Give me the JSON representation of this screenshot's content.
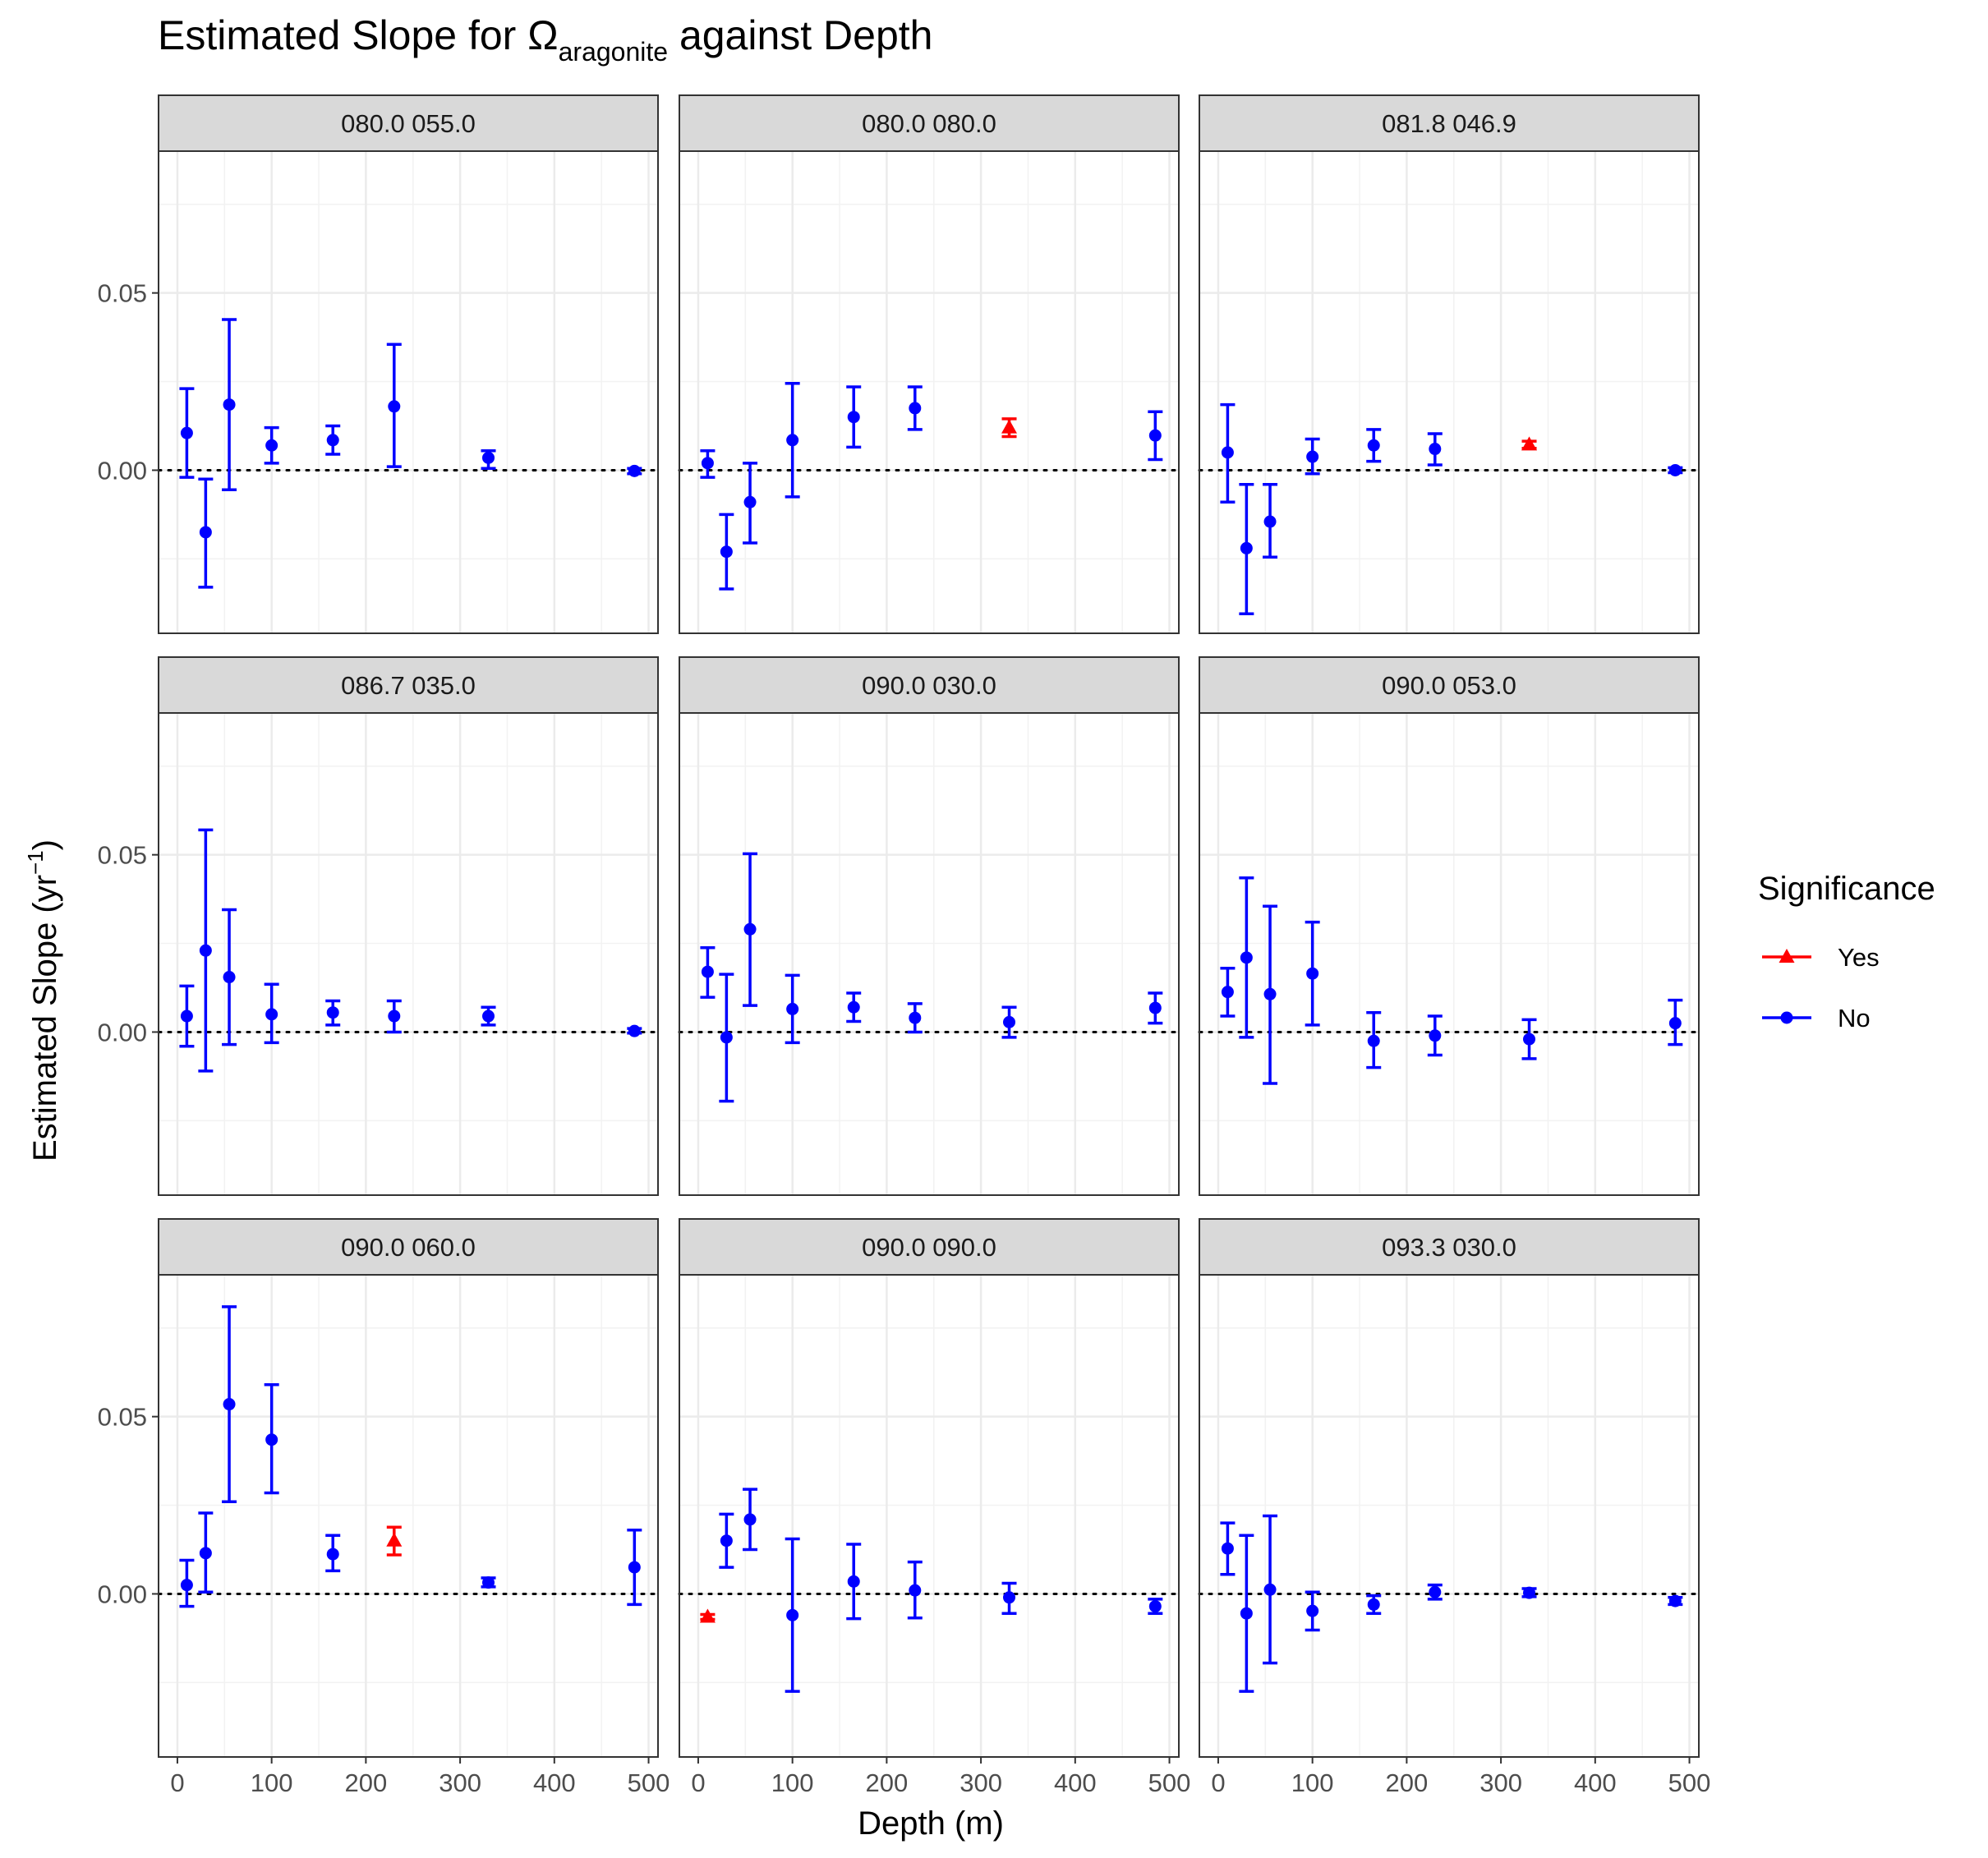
{
  "title": {
    "text": "Estimated Slope for Ω",
    "sub": "aragonite",
    "suffix": " against Depth"
  },
  "chart_data": {
    "type": "scatter",
    "subtype": "faceted points with error bars",
    "xlabel": "Depth (m)",
    "ylabel": {
      "text": "Estimated Slope (yr",
      "sup": "−1",
      "suffix": ")"
    },
    "xlim": [
      -20,
      510
    ],
    "ylim": [
      -0.046,
      0.09
    ],
    "x_ticks": [
      0,
      100,
      200,
      300,
      400,
      500
    ],
    "x_tick_labels": [
      "0",
      "100",
      "200",
      "300",
      "400",
      "500"
    ],
    "y_ticks": [
      0.0,
      0.05
    ],
    "y_tick_labels": [
      "0.00",
      "0.05"
    ],
    "grid": true,
    "reference_line": {
      "y": 0,
      "style": "dotted"
    },
    "legend": {
      "title": "Significance",
      "position": "right",
      "entries": [
        {
          "label": "Yes",
          "color": "#ff0000",
          "shape": "triangle"
        },
        {
          "label": "No",
          "color": "#0000ff",
          "shape": "circle"
        }
      ]
    },
    "facets": [
      {
        "label": "080.0 055.0",
        "points": [
          {
            "x": 10,
            "y": 0.0105,
            "lo": -0.002,
            "hi": 0.023,
            "sig": "No"
          },
          {
            "x": 30,
            "y": -0.0175,
            "lo": -0.033,
            "hi": -0.0025,
            "sig": "No"
          },
          {
            "x": 55,
            "y": 0.0185,
            "lo": -0.0055,
            "hi": 0.0425,
            "sig": "No"
          },
          {
            "x": 100,
            "y": 0.007,
            "lo": 0.002,
            "hi": 0.012,
            "sig": "No"
          },
          {
            "x": 165,
            "y": 0.0085,
            "lo": 0.0045,
            "hi": 0.0125,
            "sig": "No"
          },
          {
            "x": 230,
            "y": 0.018,
            "lo": 0.001,
            "hi": 0.0355,
            "sig": "No"
          },
          {
            "x": 330,
            "y": 0.0035,
            "lo": 0.0005,
            "hi": 0.0055,
            "sig": "No"
          },
          {
            "x": 485,
            "y": -0.0002,
            "lo": -0.001,
            "hi": 0.0005,
            "sig": "No"
          }
        ]
      },
      {
        "label": "080.0 080.0",
        "points": [
          {
            "x": 10,
            "y": 0.002,
            "lo": -0.002,
            "hi": 0.0055,
            "sig": "No"
          },
          {
            "x": 30,
            "y": -0.023,
            "lo": -0.0335,
            "hi": -0.0125,
            "sig": "No"
          },
          {
            "x": 55,
            "y": -0.009,
            "lo": -0.0205,
            "hi": 0.002,
            "sig": "No"
          },
          {
            "x": 100,
            "y": 0.0085,
            "lo": -0.0075,
            "hi": 0.0245,
            "sig": "No"
          },
          {
            "x": 165,
            "y": 0.015,
            "lo": 0.0065,
            "hi": 0.0235,
            "sig": "No"
          },
          {
            "x": 230,
            "y": 0.0175,
            "lo": 0.0115,
            "hi": 0.0235,
            "sig": "No"
          },
          {
            "x": 330,
            "y": 0.012,
            "lo": 0.0095,
            "hi": 0.0145,
            "sig": "Yes"
          },
          {
            "x": 485,
            "y": 0.0098,
            "lo": 0.003,
            "hi": 0.0165,
            "sig": "No"
          }
        ]
      },
      {
        "label": "081.8 046.9",
        "points": [
          {
            "x": 10,
            "y": 0.005,
            "lo": -0.009,
            "hi": 0.0185,
            "sig": "No"
          },
          {
            "x": 30,
            "y": -0.022,
            "lo": -0.0405,
            "hi": -0.004,
            "sig": "No"
          },
          {
            "x": 55,
            "y": -0.0145,
            "lo": -0.0245,
            "hi": -0.004,
            "sig": "No"
          },
          {
            "x": 100,
            "y": 0.0038,
            "lo": -0.001,
            "hi": 0.0088,
            "sig": "No"
          },
          {
            "x": 165,
            "y": 0.007,
            "lo": 0.0025,
            "hi": 0.0115,
            "sig": "No"
          },
          {
            "x": 230,
            "y": 0.006,
            "lo": 0.0015,
            "hi": 0.0103,
            "sig": "No"
          },
          {
            "x": 330,
            "y": 0.0072,
            "lo": 0.0062,
            "hi": 0.0082,
            "sig": "Yes"
          },
          {
            "x": 485,
            "y": 0.0,
            "lo": -0.0007,
            "hi": 0.0007,
            "sig": "No"
          }
        ]
      },
      {
        "label": "086.7 035.0",
        "points": [
          {
            "x": 10,
            "y": 0.0045,
            "lo": -0.004,
            "hi": 0.013,
            "sig": "No"
          },
          {
            "x": 30,
            "y": 0.023,
            "lo": -0.011,
            "hi": 0.057,
            "sig": "No"
          },
          {
            "x": 55,
            "y": 0.0155,
            "lo": -0.0035,
            "hi": 0.0345,
            "sig": "No"
          },
          {
            "x": 100,
            "y": 0.005,
            "lo": -0.003,
            "hi": 0.0135,
            "sig": "No"
          },
          {
            "x": 165,
            "y": 0.0055,
            "lo": 0.002,
            "hi": 0.0088,
            "sig": "No"
          },
          {
            "x": 230,
            "y": 0.0045,
            "lo": 0.0,
            "hi": 0.0088,
            "sig": "No"
          },
          {
            "x": 330,
            "y": 0.0045,
            "lo": 0.002,
            "hi": 0.007,
            "sig": "No"
          },
          {
            "x": 485,
            "y": 0.0003,
            "lo": -0.0003,
            "hi": 0.001,
            "sig": "No"
          }
        ]
      },
      {
        "label": "090.0 030.0",
        "points": [
          {
            "x": 10,
            "y": 0.017,
            "lo": 0.0098,
            "hi": 0.0238,
            "sig": "No"
          },
          {
            "x": 30,
            "y": -0.0015,
            "lo": -0.0195,
            "hi": 0.0163,
            "sig": "No"
          },
          {
            "x": 55,
            "y": 0.029,
            "lo": 0.0075,
            "hi": 0.0503,
            "sig": "No"
          },
          {
            "x": 100,
            "y": 0.0065,
            "lo": -0.003,
            "hi": 0.016,
            "sig": "No"
          },
          {
            "x": 165,
            "y": 0.007,
            "lo": 0.003,
            "hi": 0.011,
            "sig": "No"
          },
          {
            "x": 230,
            "y": 0.004,
            "lo": 0.0,
            "hi": 0.008,
            "sig": "No"
          },
          {
            "x": 330,
            "y": 0.0028,
            "lo": -0.0015,
            "hi": 0.007,
            "sig": "No"
          },
          {
            "x": 485,
            "y": 0.0068,
            "lo": 0.0025,
            "hi": 0.011,
            "sig": "No"
          }
        ]
      },
      {
        "label": "090.0 053.0",
        "points": [
          {
            "x": 10,
            "y": 0.0113,
            "lo": 0.0045,
            "hi": 0.018,
            "sig": "No"
          },
          {
            "x": 30,
            "y": 0.021,
            "lo": -0.0015,
            "hi": 0.0435,
            "sig": "No"
          },
          {
            "x": 55,
            "y": 0.0107,
            "lo": -0.0145,
            "hi": 0.0355,
            "sig": "No"
          },
          {
            "x": 100,
            "y": 0.0165,
            "lo": 0.002,
            "hi": 0.031,
            "sig": "No"
          },
          {
            "x": 165,
            "y": -0.0025,
            "lo": -0.01,
            "hi": 0.0055,
            "sig": "No"
          },
          {
            "x": 230,
            "y": -0.001,
            "lo": -0.0065,
            "hi": 0.0045,
            "sig": "No"
          },
          {
            "x": 330,
            "y": -0.002,
            "lo": -0.0075,
            "hi": 0.0035,
            "sig": "No"
          },
          {
            "x": 485,
            "y": 0.0025,
            "lo": -0.0035,
            "hi": 0.009,
            "sig": "No"
          }
        ]
      },
      {
        "label": "090.0 060.0",
        "points": [
          {
            "x": 10,
            "y": 0.0025,
            "lo": -0.0035,
            "hi": 0.0095,
            "sig": "No"
          },
          {
            "x": 30,
            "y": 0.0115,
            "lo": 0.0005,
            "hi": 0.0228,
            "sig": "No"
          },
          {
            "x": 55,
            "y": 0.0535,
            "lo": 0.026,
            "hi": 0.081,
            "sig": "No"
          },
          {
            "x": 100,
            "y": 0.0435,
            "lo": 0.0285,
            "hi": 0.059,
            "sig": "No"
          },
          {
            "x": 165,
            "y": 0.0112,
            "lo": 0.0065,
            "hi": 0.0165,
            "sig": "No"
          },
          {
            "x": 230,
            "y": 0.015,
            "lo": 0.011,
            "hi": 0.0188,
            "sig": "Yes"
          },
          {
            "x": 330,
            "y": 0.0032,
            "lo": 0.002,
            "hi": 0.0045,
            "sig": "No"
          },
          {
            "x": 485,
            "y": 0.0075,
            "lo": -0.003,
            "hi": 0.018,
            "sig": "No"
          }
        ]
      },
      {
        "label": "090.0 090.0",
        "points": [
          {
            "x": 10,
            "y": -0.0065,
            "lo": -0.0072,
            "hi": -0.0058,
            "sig": "Yes"
          },
          {
            "x": 30,
            "y": 0.015,
            "lo": 0.0075,
            "hi": 0.0225,
            "sig": "No"
          },
          {
            "x": 55,
            "y": 0.021,
            "lo": 0.0125,
            "hi": 0.0295,
            "sig": "No"
          },
          {
            "x": 100,
            "y": -0.006,
            "lo": -0.0275,
            "hi": 0.0155,
            "sig": "No"
          },
          {
            "x": 165,
            "y": 0.0035,
            "lo": -0.007,
            "hi": 0.014,
            "sig": "No"
          },
          {
            "x": 230,
            "y": 0.001,
            "lo": -0.0068,
            "hi": 0.009,
            "sig": "No"
          },
          {
            "x": 330,
            "y": -0.001,
            "lo": -0.0055,
            "hi": 0.003,
            "sig": "No"
          },
          {
            "x": 485,
            "y": -0.0035,
            "lo": -0.0055,
            "hi": -0.0015,
            "sig": "No"
          }
        ]
      },
      {
        "label": "093.3 030.0",
        "points": [
          {
            "x": 10,
            "y": 0.0128,
            "lo": 0.0055,
            "hi": 0.02,
            "sig": "No"
          },
          {
            "x": 30,
            "y": -0.0055,
            "lo": -0.0275,
            "hi": 0.0165,
            "sig": "No"
          },
          {
            "x": 55,
            "y": 0.0012,
            "lo": -0.0195,
            "hi": 0.022,
            "sig": "No"
          },
          {
            "x": 100,
            "y": -0.0048,
            "lo": -0.0102,
            "hi": 0.0005,
            "sig": "No"
          },
          {
            "x": 165,
            "y": -0.003,
            "lo": -0.0055,
            "hi": -0.0005,
            "sig": "No"
          },
          {
            "x": 230,
            "y": 0.0005,
            "lo": -0.0015,
            "hi": 0.0025,
            "sig": "No"
          },
          {
            "x": 330,
            "y": 0.0003,
            "lo": -0.0008,
            "hi": 0.0015,
            "sig": "No"
          },
          {
            "x": 485,
            "y": -0.002,
            "lo": -0.003,
            "hi": -0.001,
            "sig": "No"
          }
        ]
      }
    ]
  }
}
